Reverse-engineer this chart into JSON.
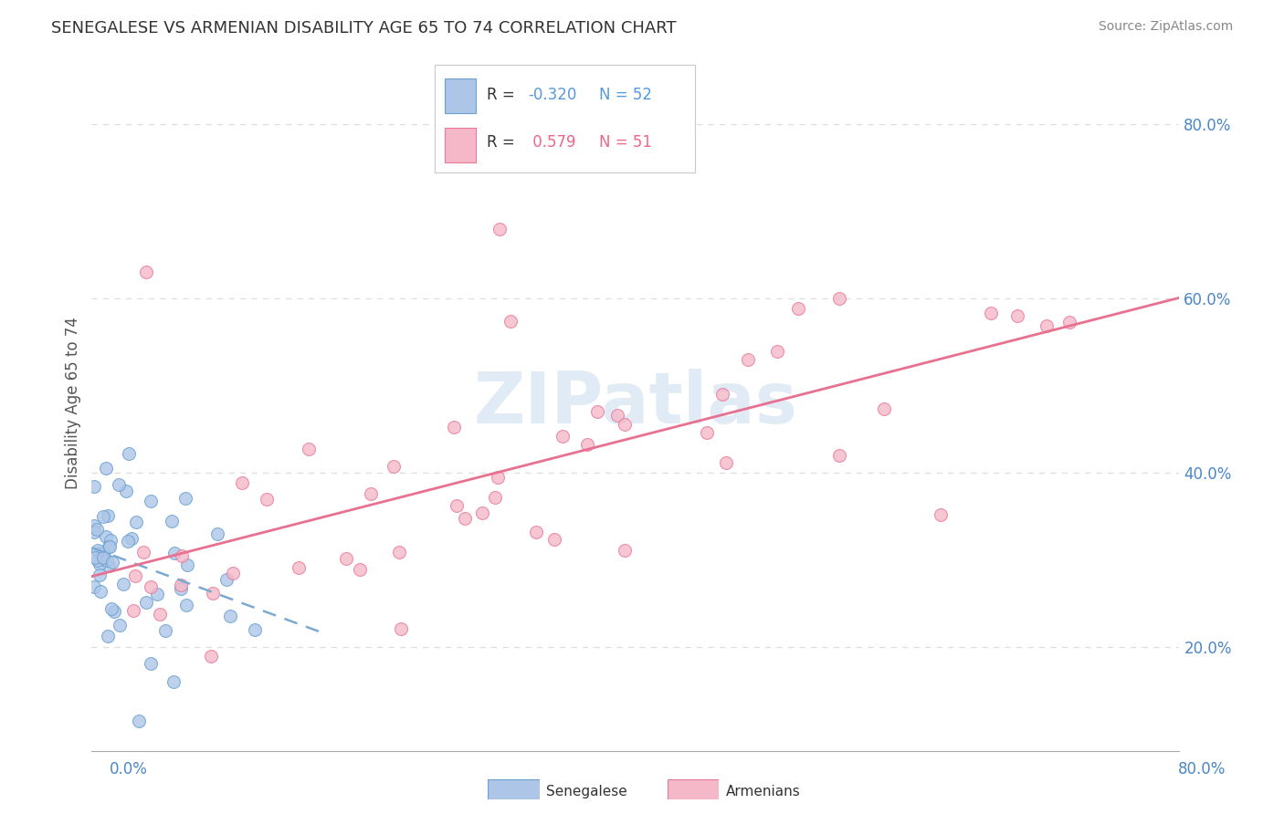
{
  "title": "SENEGALESE VS ARMENIAN DISABILITY AGE 65 TO 74 CORRELATION CHART",
  "source_text": "Source: ZipAtlas.com",
  "ylabel": "Disability Age 65 to 74",
  "xlim": [
    0.0,
    0.8
  ],
  "ylim": [
    0.08,
    0.88
  ],
  "yticks": [
    0.2,
    0.4,
    0.6,
    0.8
  ],
  "ytick_labels": [
    "20.0%",
    "40.0%",
    "60.0%",
    "80.0%"
  ],
  "xtick_left_label": "0.0%",
  "xtick_right_label": "80.0%",
  "senegalese_R": -0.32,
  "senegalese_N": 52,
  "armenian_R": 0.579,
  "armenian_N": 51,
  "senegalese_color": "#adc6e8",
  "armenian_color": "#f5b8c8",
  "senegalese_edge_color": "#6a9fd0",
  "armenian_edge_color": "#e8789a",
  "senegalese_trend_color": "#7aaad4",
  "armenian_trend_color": "#e87090",
  "watermark_color": "#cddff0",
  "background_color": "#ffffff",
  "legend_R_color_sen": "#5599dd",
  "legend_R_color_arm": "#ee6688",
  "legend_N_color": "#333333",
  "grid_color": "#dddddd",
  "axis_color": "#aaaaaa",
  "title_color": "#333333",
  "source_color": "#888888",
  "ylabel_color": "#555555"
}
